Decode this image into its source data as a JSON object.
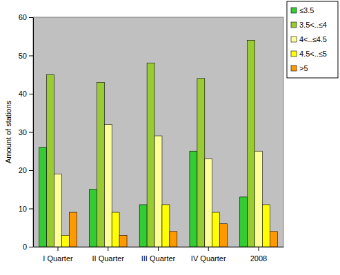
{
  "chart_data": {
    "type": "bar",
    "y_label": "Amount of stations",
    "categories": [
      "I Quarter",
      "II Quarter",
      "III Quarter",
      "IV Quarter",
      "2008"
    ],
    "series": [
      {
        "name": "≤3.5",
        "color": "#33cc33",
        "values": [
          26,
          15,
          11,
          25,
          13
        ]
      },
      {
        "name": "3.5<..≤4",
        "color": "#99cc33",
        "values": [
          45,
          43,
          48,
          44,
          54
        ]
      },
      {
        "name": "4<..≤4.5",
        "color": "#ffff99",
        "values": [
          19,
          32,
          29,
          23,
          25
        ]
      },
      {
        "name": "4.5<..≤5",
        "color": "#ffff00",
        "values": [
          3,
          9,
          11,
          9,
          11
        ]
      },
      {
        "name": ">5",
        "color": "#ff9900",
        "values": [
          9,
          3,
          4,
          6,
          4
        ]
      }
    ],
    "ylim": [
      0,
      60
    ],
    "yticks": [
      0,
      10,
      20,
      30,
      40,
      50,
      60
    ],
    "grid": false,
    "legend": "top-right"
  }
}
